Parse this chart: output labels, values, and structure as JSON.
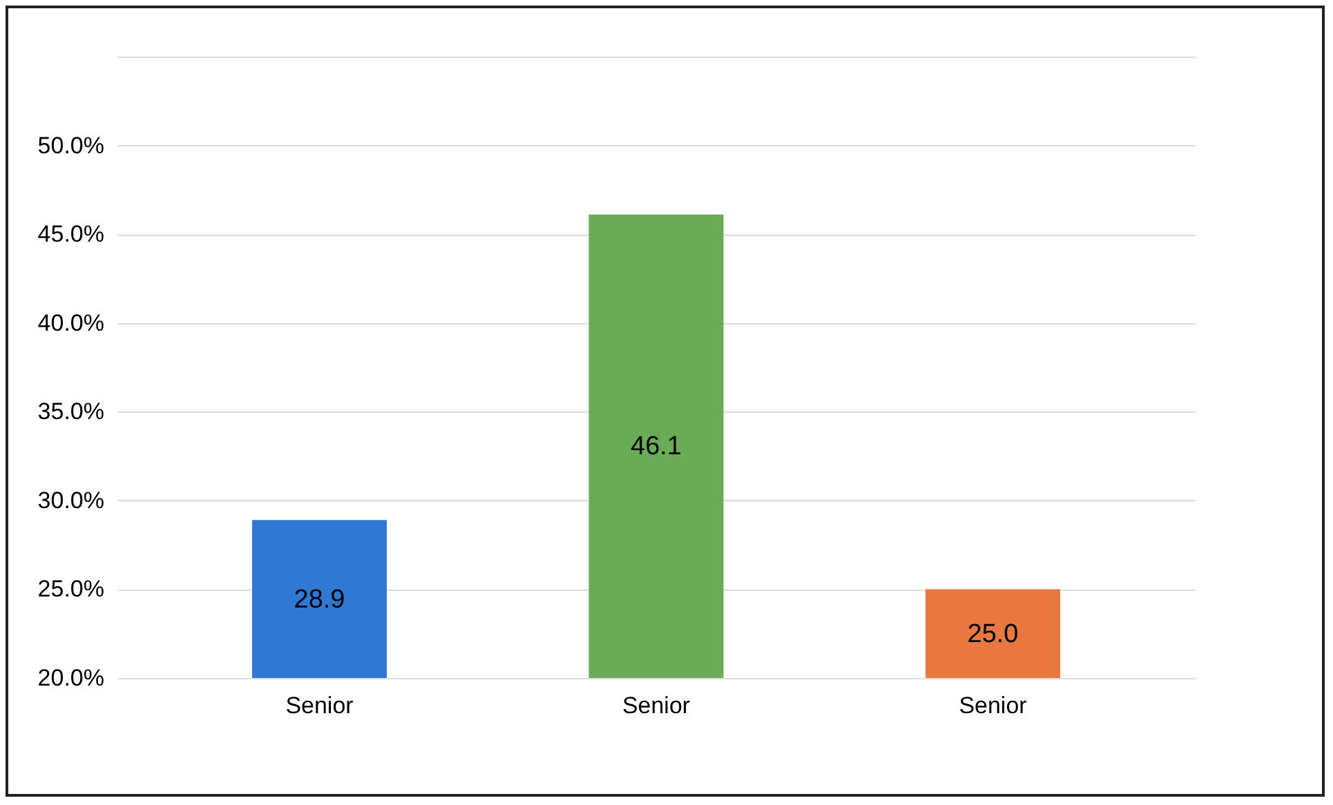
{
  "chart_data": {
    "type": "bar",
    "categories": [
      "Senior",
      "Senior",
      "Senior"
    ],
    "values": [
      28.9,
      46.1,
      25.0
    ],
    "colors": [
      "#2f78d4",
      "#6aab57",
      "#e8783f"
    ],
    "ylim": [
      20,
      55
    ],
    "yticks": [
      {
        "value": 20,
        "label": "20.0%"
      },
      {
        "value": 25,
        "label": "25.0%"
      },
      {
        "value": 30,
        "label": "30.0%"
      },
      {
        "value": 35,
        "label": "35.0%"
      },
      {
        "value": 40,
        "label": "40.0%"
      },
      {
        "value": 45,
        "label": "45.0%"
      },
      {
        "value": 50,
        "label": "50.0%"
      },
      {
        "value": 55,
        "label": null
      }
    ],
    "grid": true,
    "value_labels": [
      "28.9",
      "46.1",
      "25.0"
    ],
    "legend": false
  }
}
